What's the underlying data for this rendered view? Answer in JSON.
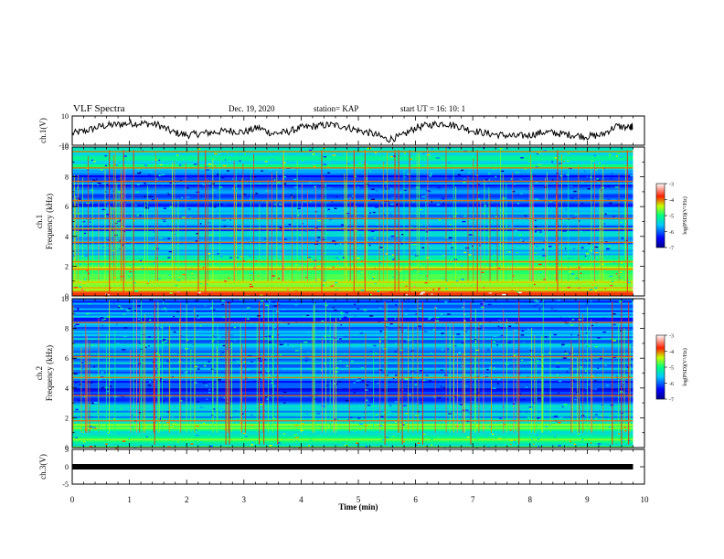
{
  "header": {
    "title": "VLF Spectra",
    "date": "Dec. 19, 2020",
    "station": "station= KAP",
    "start": "start  UT =   16: 10: 1"
  },
  "chart_data": [
    {
      "type": "line",
      "panel": "ch1-waveform",
      "ylabel": "ch.1(V)",
      "ylim": [
        -10,
        10
      ],
      "yticks": [
        "10",
        "-10"
      ],
      "xlim": [
        0,
        10
      ],
      "series": [
        {
          "x": [
            0,
            0.25,
            0.5,
            0.75,
            1.0,
            1.25,
            1.5,
            1.75,
            2.0,
            2.25,
            2.5,
            2.75,
            3.0,
            3.25,
            3.5,
            3.75,
            4.0,
            4.25,
            4.5,
            4.75,
            5.0,
            5.25,
            5.5,
            5.75,
            6.0,
            6.25,
            6.5,
            6.75,
            7.0,
            7.25,
            7.5,
            7.75,
            8.0,
            8.25,
            8.5,
            8.75,
            9.0,
            9.25,
            9.5,
            9.75,
            9.8
          ],
          "y": [
            -2,
            0,
            3,
            4,
            5,
            5,
            4,
            -1,
            -3,
            -2,
            -1,
            0,
            -1,
            2,
            -2,
            -1,
            2,
            3,
            4,
            3,
            0,
            -2,
            -6,
            -4,
            2,
            4,
            5,
            3,
            0,
            -2,
            -3,
            -4,
            -3,
            -1,
            -2,
            -3,
            -4,
            -3,
            3,
            2,
            3
          ]
        }
      ]
    },
    {
      "type": "heatmap",
      "panel": "ch1-spectrogram",
      "ylabel": "ch.1\nFrequency (kHz)",
      "ylim": [
        0,
        10
      ],
      "yticks": [
        "0",
        "2",
        "4",
        "6",
        "8",
        "10"
      ],
      "xlim": [
        0,
        9.8
      ],
      "colorbar": {
        "label": "log(PSD)(V²/Hz)",
        "ticks": [
          "-3",
          "-4",
          "-5",
          "-6",
          "-7"
        ],
        "range": [
          -7,
          -3
        ]
      },
      "bands_khz": [
        {
          "from": 0.0,
          "to": 0.3,
          "level": -3.6
        },
        {
          "from": 0.3,
          "to": 1.0,
          "level": -4.4
        },
        {
          "from": 1.0,
          "to": 2.4,
          "level": -4.7
        },
        {
          "from": 2.4,
          "to": 3.0,
          "level": -5.3
        },
        {
          "from": 3.0,
          "to": 6.0,
          "level": -5.8
        },
        {
          "from": 6.0,
          "to": 8.5,
          "level": -6.1
        },
        {
          "from": 8.5,
          "to": 10.0,
          "level": -5.2
        }
      ],
      "tone_lines_khz": [
        1.8,
        2.3,
        3.6,
        4.5,
        5.2,
        6.4,
        7.7,
        8.6,
        9.7
      ]
    },
    {
      "type": "heatmap",
      "panel": "ch2-spectrogram",
      "ylabel": "ch.2\nFrequency (kHz)",
      "ylim": [
        0,
        10
      ],
      "yticks": [
        "0",
        "2",
        "4",
        "6",
        "8",
        "10"
      ],
      "xlim": [
        0,
        9.8
      ],
      "colorbar": {
        "label": "log(PSD)(V²/Hz)",
        "ticks": [
          "-3",
          "-4",
          "-5",
          "-6",
          "-7"
        ],
        "range": [
          -7,
          -3
        ]
      },
      "bands_khz": [
        {
          "from": 0.0,
          "to": 0.5,
          "level": -5.0
        },
        {
          "from": 0.5,
          "to": 1.8,
          "level": -5.0
        },
        {
          "from": 1.8,
          "to": 3.0,
          "level": -5.6
        },
        {
          "from": 3.0,
          "to": 4.6,
          "level": -6.2
        },
        {
          "from": 4.6,
          "to": 7.5,
          "level": -5.7
        },
        {
          "from": 7.5,
          "to": 10.0,
          "level": -5.9
        }
      ],
      "tone_lines_khz": [
        1.8,
        3.5,
        4.7,
        6.1,
        8.4
      ]
    },
    {
      "type": "line",
      "panel": "ch3-waveform",
      "ylabel": "ch.3(V)",
      "ylim": [
        -5,
        5
      ],
      "yticks": [
        "5",
        "0",
        "-5"
      ],
      "xlabel": "Time (min)",
      "xlim": [
        0,
        10
      ],
      "xticks": [
        "0",
        "1",
        "2",
        "3",
        "4",
        "5",
        "6",
        "7",
        "8",
        "9",
        "10"
      ],
      "series": [
        {
          "x": [
            0,
            9.8
          ],
          "y": [
            0,
            0
          ]
        }
      ]
    }
  ]
}
